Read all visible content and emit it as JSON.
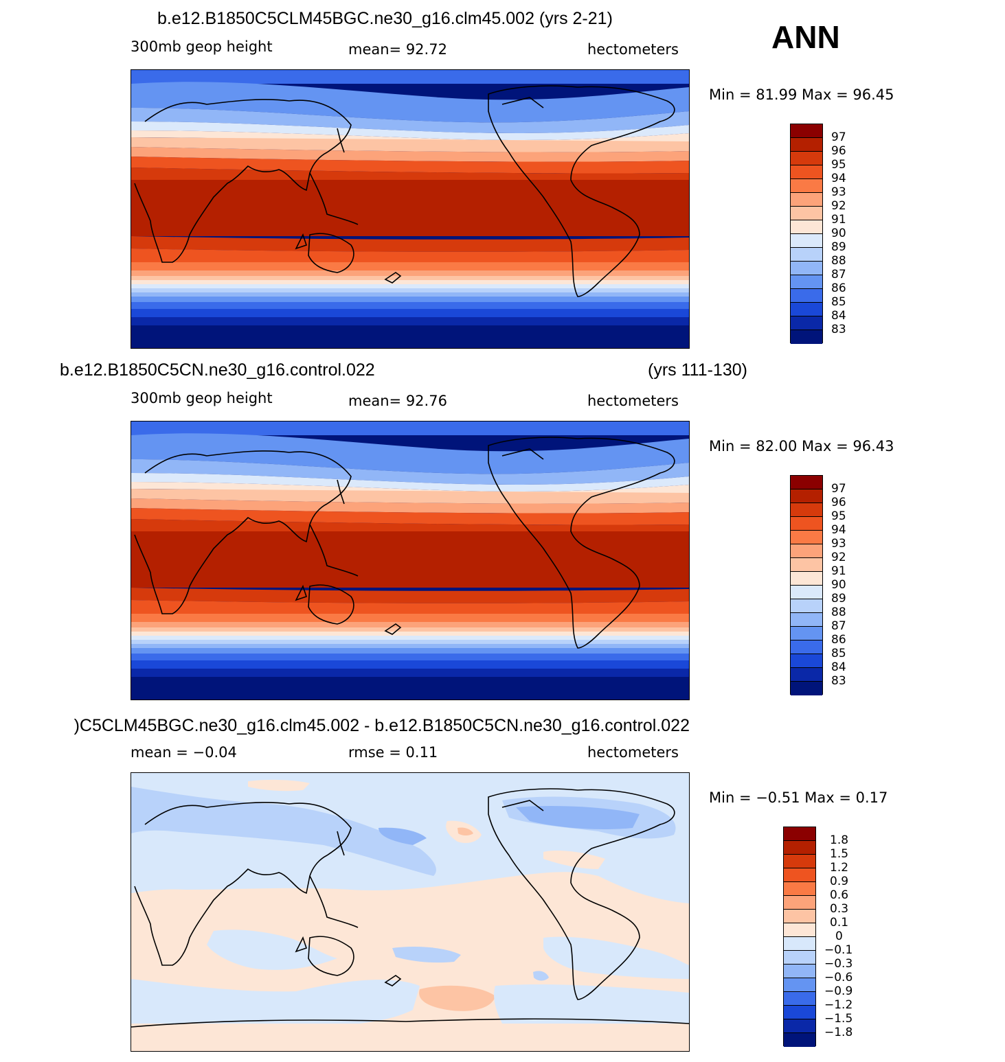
{
  "season": "ANN",
  "panels": [
    {
      "case_title": "b.e12.B1850C5CLM45BGC.ne30_g16.clm45.002 (yrs 2-21)",
      "years": "",
      "left_label": "300mb  geop  height",
      "center_label": "mean=   92.72",
      "units": "hectometers",
      "minmax": "Min =   81.99  Max =   96.45",
      "colorbar_labels": [
        "97",
        "96",
        "95",
        "94",
        "93",
        "92",
        "91",
        "90",
        "89",
        "88",
        "87",
        "86",
        "85",
        "84",
        "83"
      ]
    },
    {
      "case_title": "b.e12.B1850C5CN.ne30_g16.control.022",
      "years": "(yrs 111-130)",
      "left_label": "300mb  geop  height",
      "center_label": "mean=   92.76",
      "units": "hectometers",
      "minmax": "Min =   82.00  Max =   96.43",
      "colorbar_labels": [
        "97",
        "96",
        "95",
        "94",
        "93",
        "92",
        "91",
        "90",
        "89",
        "88",
        "87",
        "86",
        "85",
        "84",
        "83"
      ]
    },
    {
      "case_title": ")C5CLM45BGC.ne30_g16.clm45.002 - b.e12.B1850C5CN.ne30_g16.control.022",
      "left_label": "mean =   −0.04",
      "center_label": "rmse =     0.11",
      "units": "hectometers",
      "minmax": "Min =   −0.51  Max =     0.17",
      "colorbar_labels": [
        "1.8",
        "1.5",
        "1.2",
        "0.9",
        "0.6",
        "0.3",
        "0.1",
        "0",
        "−0.1",
        "−0.3",
        "−0.6",
        "−0.9",
        "−1.2",
        "−1.5",
        "−1.8"
      ]
    }
  ],
  "colors": {
    "abs_scale": [
      "#8b0000",
      "#b42000",
      "#d63a0c",
      "#ee5420",
      "#fa7a45",
      "#fca37a",
      "#fdc4a4",
      "#fde6d6",
      "#dbe9fb",
      "#b8d2fa",
      "#91b6f7",
      "#6494f2",
      "#3a6bea",
      "#1a48d8",
      "#0a28a8",
      "#00147a"
    ],
    "diff_scale": [
      "#8b0000",
      "#b42000",
      "#d63a0c",
      "#ee5420",
      "#fa7a45",
      "#fca37a",
      "#fdc4a4",
      "#fde6d6",
      "#d8e8fb",
      "#b8d2fa",
      "#91b6f7",
      "#6494f2",
      "#3a6bea",
      "#1a48d8",
      "#0a28a8",
      "#00147a"
    ]
  }
}
